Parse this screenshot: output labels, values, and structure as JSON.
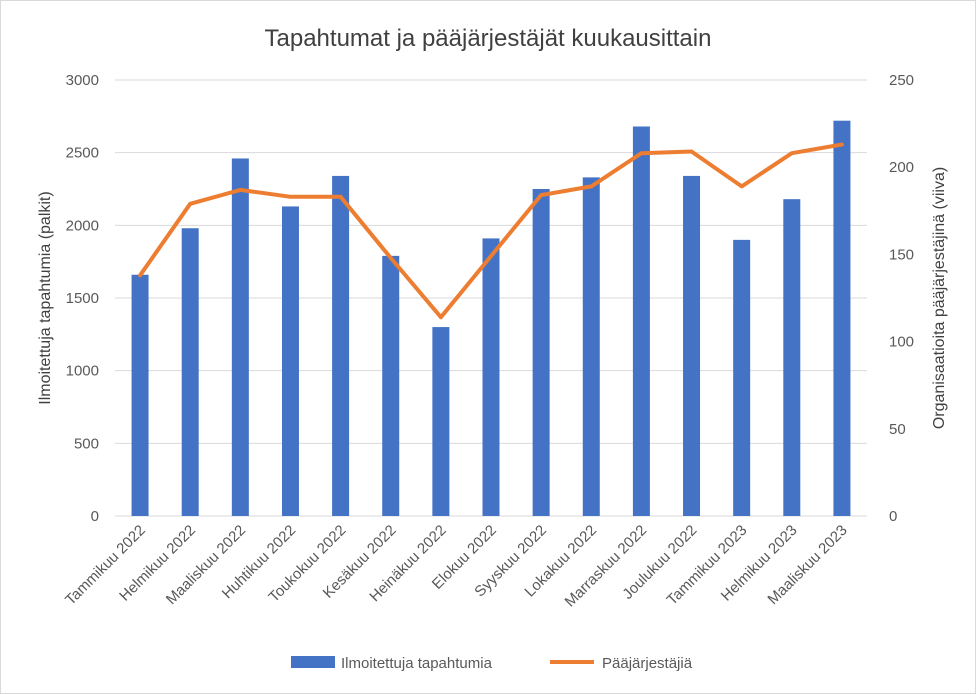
{
  "chart_data": {
    "type": "bar",
    "title": "Tapahtumat ja pääjärjestäjät kuukausittain",
    "categories": [
      "Tammikuu 2022",
      "Helmikuu 2022",
      "Maaliskuu 2022",
      "Huhtikuu 2022",
      "Toukokuu 2022",
      "Kesäkuu 2022",
      "Heinäkuu 2022",
      "Elokuu 2022",
      "Syyskuu 2022",
      "Lokakuu 2022",
      "Marraskuu 2022",
      "Joulukuu 2022",
      "Tammikuu 2023",
      "Helmikuu 2023",
      "Maaliskuu 2023"
    ],
    "series": [
      {
        "name": "Ilmoitettuja tapahtumia",
        "type": "bar",
        "axis": "left",
        "color": "#4472C4",
        "values": [
          1660,
          1980,
          2460,
          2130,
          2340,
          1790,
          1300,
          1910,
          2250,
          2330,
          2680,
          2340,
          1900,
          2180,
          2720
        ]
      },
      {
        "name": "Pääjärjestäjiä",
        "type": "line",
        "axis": "right",
        "color": "#ED7D31",
        "values": [
          138,
          179,
          187,
          183,
          183,
          148,
          114,
          149,
          184,
          189,
          208,
          209,
          189,
          208,
          213
        ]
      }
    ],
    "ylabel": "Ilmoitettuja tapahtumia (palkit)",
    "y2label": "Organisaatioita pääjärjestäjinä (viiva)",
    "ylim": [
      0,
      3000
    ],
    "y2lim": [
      0,
      250
    ],
    "yticks": [
      "0",
      "500",
      "1000",
      "1500",
      "2000",
      "2500",
      "3000"
    ],
    "y2ticks": [
      "0",
      "50",
      "100",
      "150",
      "200",
      "250"
    ],
    "grid": true,
    "legend": "bottom"
  }
}
